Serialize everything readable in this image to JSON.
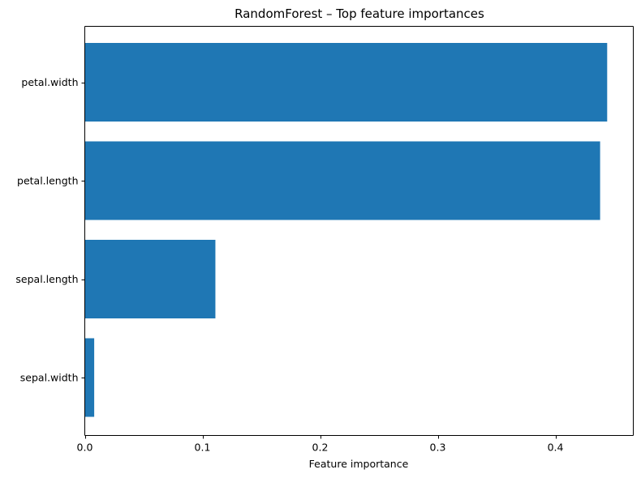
{
  "chart_data": {
    "type": "bar",
    "orientation": "horizontal",
    "title": "RandomForest – Top feature importances",
    "xlabel": "Feature importance",
    "ylabel": "",
    "categories": [
      "petal.width",
      "petal.length",
      "sepal.length",
      "sepal.width"
    ],
    "values": [
      0.444,
      0.438,
      0.111,
      0.008
    ],
    "xlim": [
      0.0,
      0.4662
    ],
    "xticks": [
      0.0,
      0.1,
      0.2,
      0.3,
      0.4
    ],
    "xtick_labels": [
      "0.0",
      "0.1",
      "0.2",
      "0.3",
      "0.4"
    ],
    "grid": false,
    "legend": "none",
    "bar_color": "#1f77b4"
  }
}
